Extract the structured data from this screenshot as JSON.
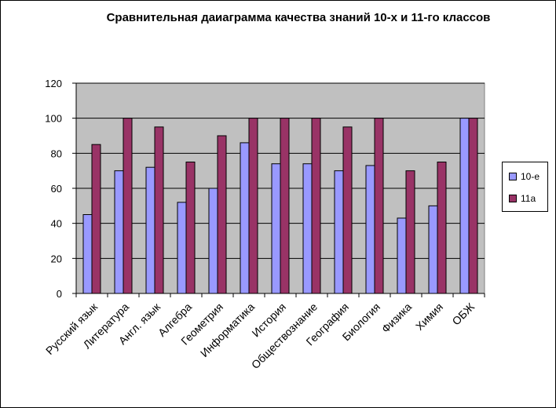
{
  "chart_data": {
    "type": "bar",
    "title": "Сравнительная даиаграмма качества знаний 10-х  и 11-го классов",
    "categories": [
      "Русский язык",
      "Литература",
      "Англ. язык",
      "Алгебра",
      "Геометрия",
      "Информатика",
      "История",
      "Обществознание",
      "География",
      "Биология",
      "Физика",
      "Химия",
      "ОБЖ"
    ],
    "series": [
      {
        "name": "10-е",
        "color": "#9999FF",
        "values": [
          45,
          70,
          72,
          52,
          60,
          86,
          74,
          74,
          70,
          73,
          43,
          50,
          100
        ]
      },
      {
        "name": "11а",
        "color": "#993366",
        "values": [
          85,
          100,
          95,
          75,
          90,
          100,
          100,
          100,
          95,
          100,
          70,
          75,
          100
        ]
      }
    ],
    "ylim": [
      0,
      120
    ],
    "yticks": [
      0,
      20,
      40,
      60,
      80,
      100,
      120
    ],
    "grid": true,
    "plot_background": "#C0C0C0",
    "legend_position": "right"
  }
}
